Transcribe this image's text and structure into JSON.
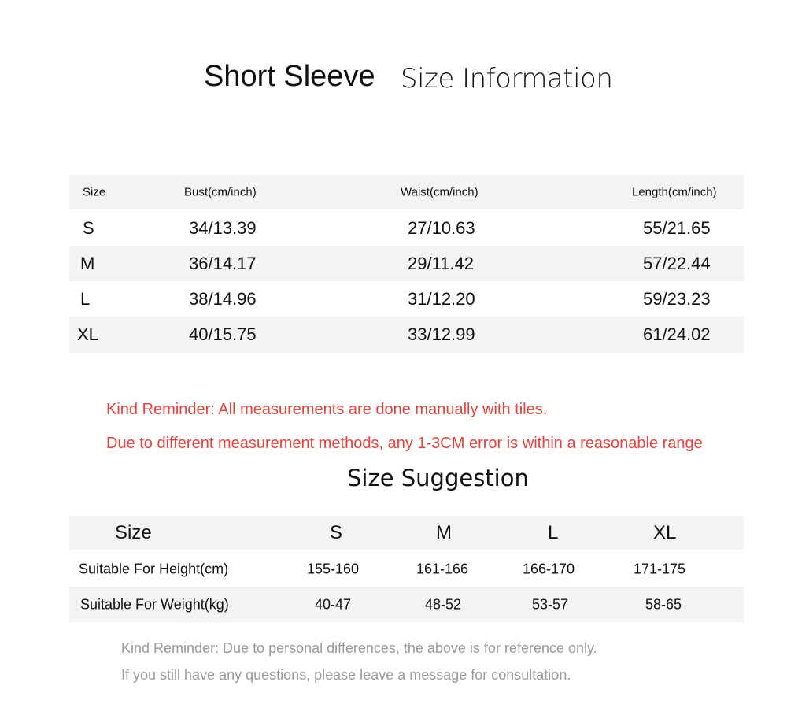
{
  "title": {
    "part1": "Short Sleeve",
    "part2": "Size Information"
  },
  "measurements": {
    "headers": [
      "Size",
      "Bust(cm/inch)",
      "Waist(cm/inch)",
      "Length(cm/inch)"
    ],
    "rows": [
      [
        "S",
        "34/13.39",
        "27/10.63",
        "55/21.65"
      ],
      [
        "M",
        "36/14.17",
        "29/11.42",
        "57/22.44"
      ],
      [
        "L",
        "38/14.96",
        "31/12.20",
        "59/23.23"
      ],
      [
        "XL",
        "40/15.75",
        "33/12.99",
        "61/24.02"
      ]
    ]
  },
  "reminders": [
    "Kind Reminder: All measurements are done manually with tiles.",
    "Due to different measurement methods, any 1-3CM error is within a reasonable range"
  ],
  "suggestion": {
    "title": "Size Suggestion",
    "headers": [
      "Size",
      "S",
      "M",
      "L",
      "XL"
    ],
    "rows": [
      [
        "Suitable For Height(cm)",
        "155-160",
        "161-166",
        "166-170",
        "171-175"
      ],
      [
        "Suitable For Weight(kg)",
        "40-47",
        "48-52",
        "53-57",
        "58-65"
      ]
    ]
  },
  "footer_notes": [
    "Kind Reminder: Due to personal differences, the above is for reference only.",
    "If you still have any questions, please leave a message for consultation."
  ],
  "colors": {
    "reminder_red": "#e8413c",
    "note_gray": "#9a9a9a",
    "row_stripe": "#f3f3f3"
  }
}
